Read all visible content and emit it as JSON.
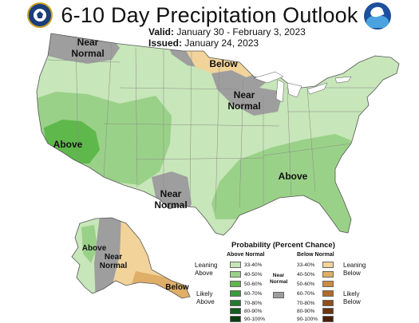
{
  "header": {
    "title": "6-10 Day Precipitation Outlook",
    "valid_label": "Valid:",
    "valid_value": "January 30 - February 3, 2023",
    "issued_label": "Issued:",
    "issued_value": "January 24, 2023"
  },
  "logos": [
    "us-department-of-commerce-seal",
    "noaa-logo"
  ],
  "colors": {
    "above_33_40": "#c7e6b9",
    "above_40_50": "#9ad188",
    "above_50_60": "#5fb84c",
    "above_60_70": "#3a9a3c",
    "above_70_80": "#237a2c",
    "above_80_90": "#155c1f",
    "above_90_100": "#0b3d12",
    "near_normal": "#9e9e9e",
    "below_33_40": "#f2d39a",
    "below_40_50": "#dfae67",
    "below_50_60": "#c98b42",
    "below_60_70": "#b06a2a",
    "below_70_80": "#8e4e1c",
    "below_80_90": "#6b3512",
    "below_90_100": "#4a200a"
  },
  "map_labels": [
    {
      "name": "near-normal-northwest",
      "text": "Near Normal"
    },
    {
      "name": "below-upper-midwest",
      "text": "Below"
    },
    {
      "name": "near-normal-great-lakes",
      "text": "Near Normal"
    },
    {
      "name": "above-california",
      "text": "Above"
    },
    {
      "name": "above-southeast",
      "text": "Above"
    },
    {
      "name": "near-normal-texas",
      "text": "Near Normal"
    },
    {
      "name": "above-alaska-west",
      "text": "Above"
    },
    {
      "name": "near-normal-alaska",
      "text": "Near Normal"
    },
    {
      "name": "below-alaska-south",
      "text": "Below"
    }
  ],
  "legend": {
    "title": "Probability (Percent Chance)",
    "above_header": "Above Normal",
    "below_header": "Below Normal",
    "near_label": "Near Normal",
    "leaning_above": "Leaning Above",
    "likely_above": "Likely Above",
    "leaning_below": "Leaning Below",
    "likely_below": "Likely Below",
    "ranges": [
      "33-40%",
      "40-50%",
      "50-60%",
      "60-70%",
      "70-80%",
      "80-90%",
      "90-100%"
    ]
  }
}
